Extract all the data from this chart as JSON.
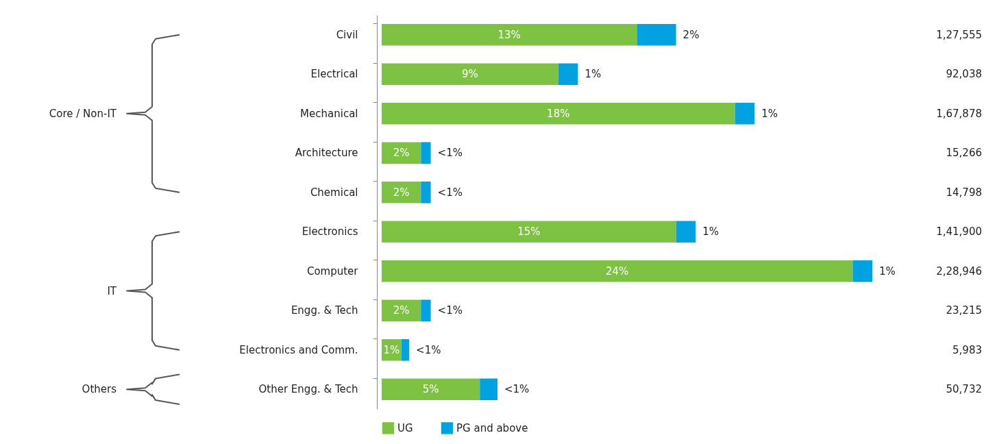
{
  "chart_data": {
    "type": "bar",
    "orientation": "horizontal",
    "stacked": true,
    "categories": [
      "Civil",
      "Electrical",
      "Mechanical",
      "Architecture",
      "Chemical",
      "Electronics",
      "Computer",
      "Engg. & Tech",
      "Electronics and Comm.",
      "Other Engg. & Tech"
    ],
    "series": [
      {
        "name": "UG",
        "color": "#7dc242",
        "values": [
          13,
          9,
          18,
          2,
          2,
          15,
          24,
          2,
          1,
          5
        ],
        "value_labels": [
          "13%",
          "9%",
          "18%",
          "2%",
          "2%",
          "15%",
          "24%",
          "2%",
          "1%",
          "5%"
        ]
      },
      {
        "name": "PG and above",
        "color": "#00a3e0",
        "values": [
          2,
          1,
          1,
          0.5,
          0.5,
          1,
          1,
          0.5,
          0.4,
          0.9
        ],
        "value_labels": [
          "2%",
          "1%",
          "1%",
          "<1%",
          "<1%",
          "1%",
          "1%",
          "<1%",
          "<1%",
          "<1%"
        ]
      }
    ],
    "y2_categories": [
      "1,27,555",
      "92,038",
      "1,67,878",
      "15,266",
      "14,798",
      "1,41,900",
      "2,28,946",
      "23,215",
      "5,983",
      "50,732"
    ],
    "annotations": [
      "Core / Non-IT",
      "IT",
      "Others"
    ],
    "legend": "bottom"
  }
}
